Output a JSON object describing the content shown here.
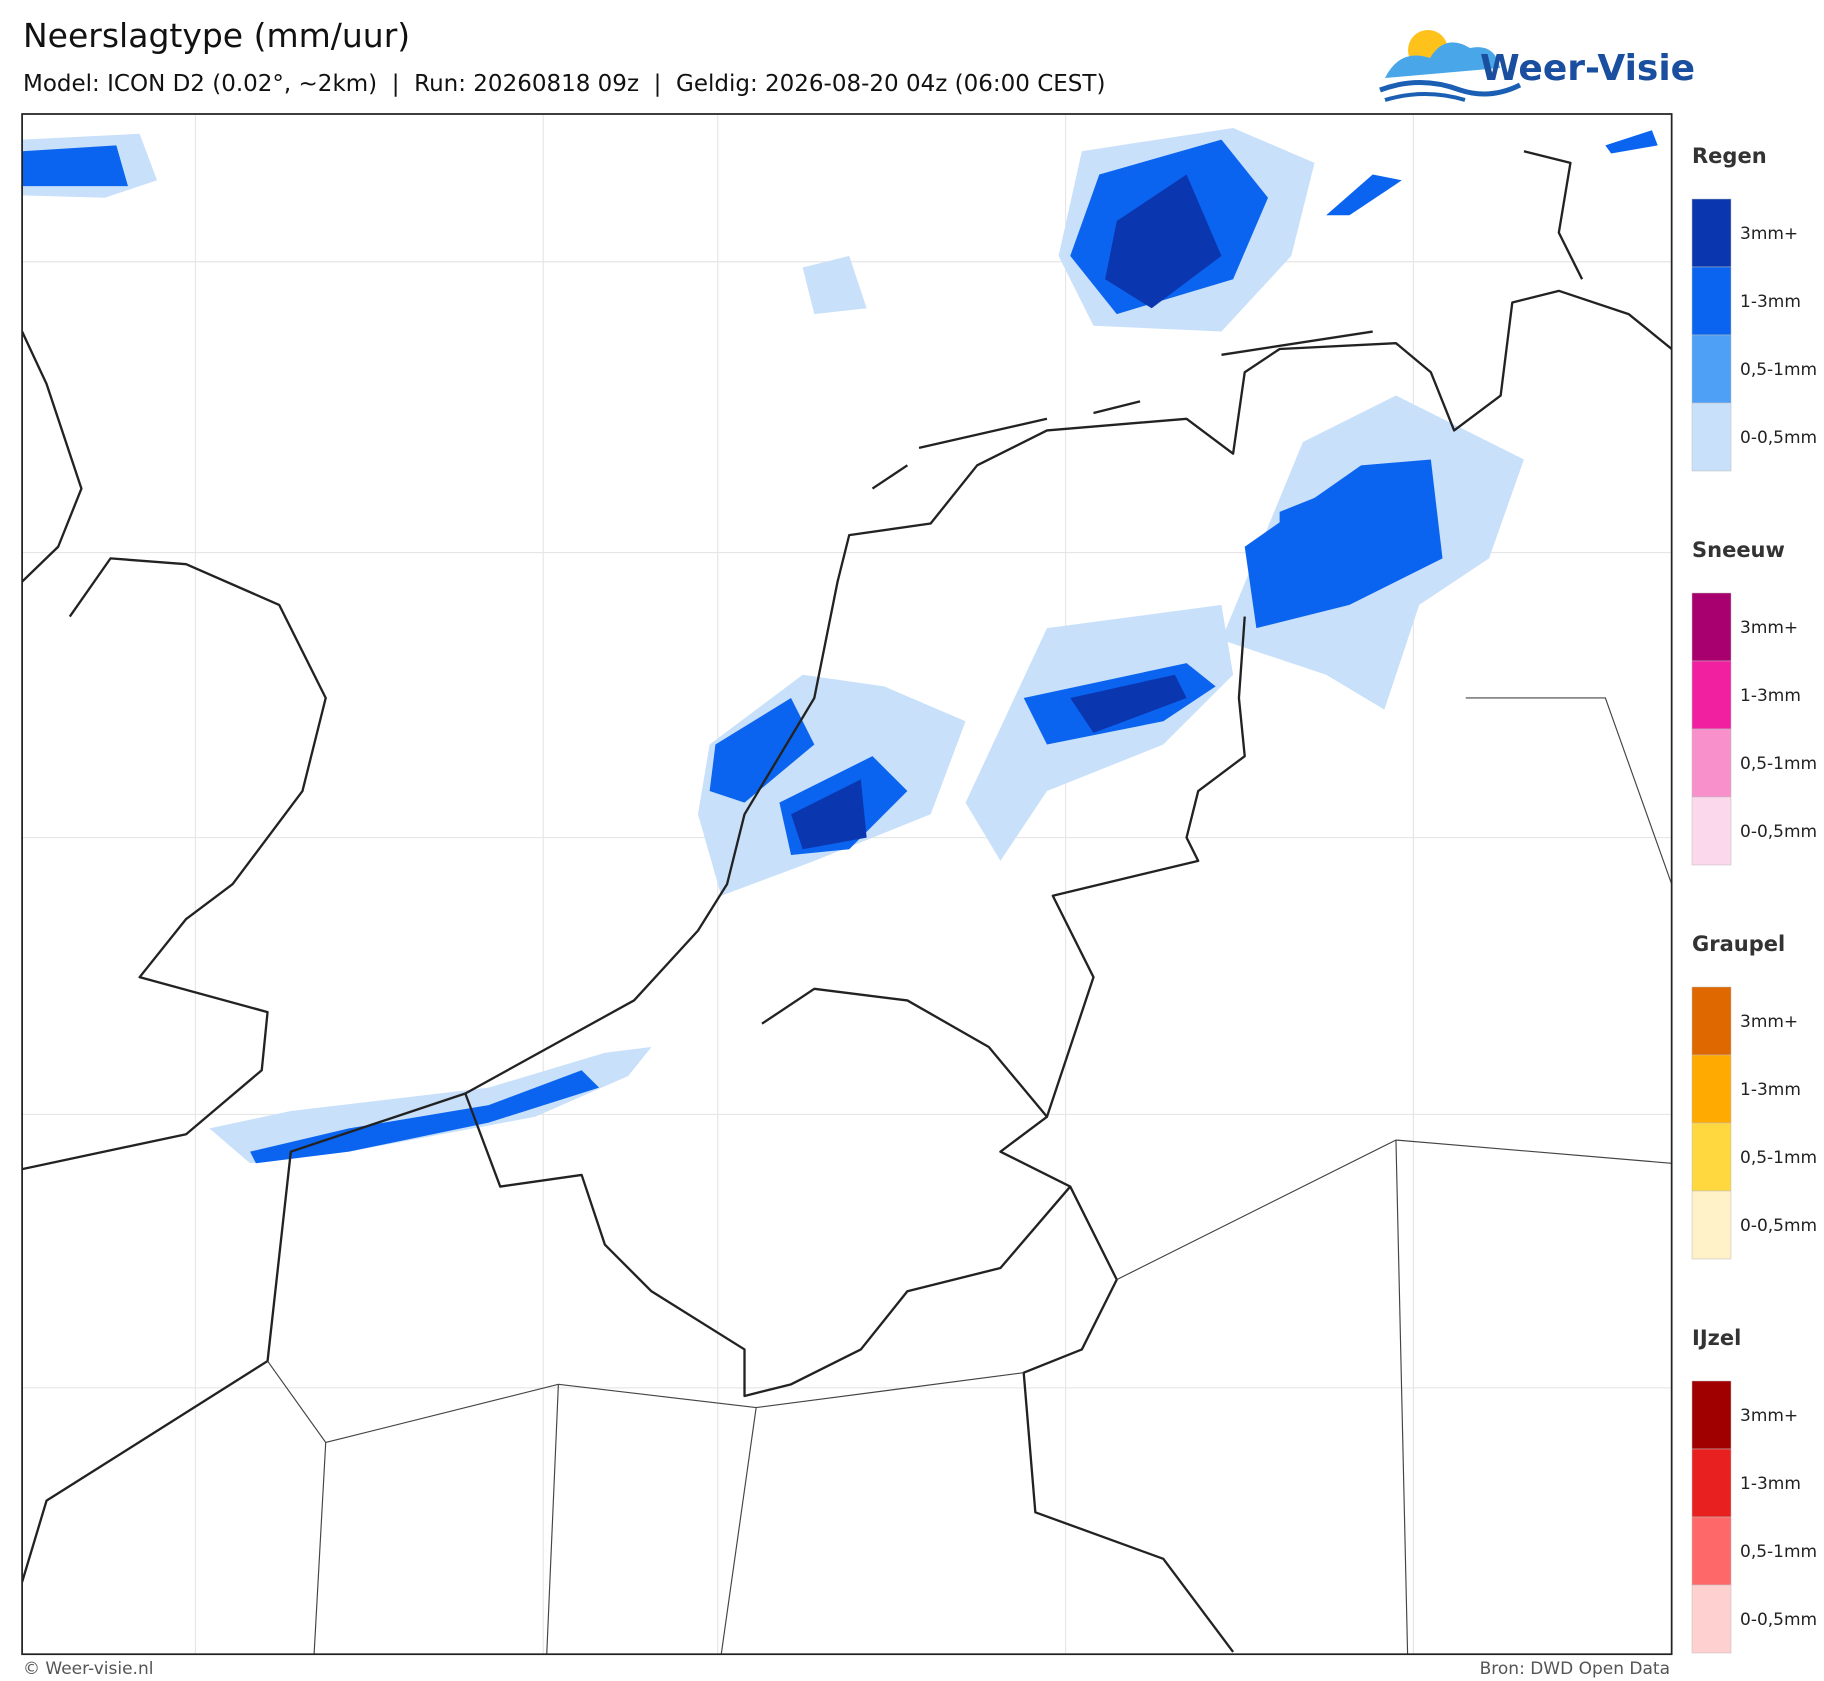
{
  "header": {
    "title": "Neerslagtype (mm/uur)",
    "subtitle": "Model: ICON D2 (0.02°, ~2km)  |  Run: 20260818 09z  |  Geldig: 2026-08-20 04z (06:00 CEST)",
    "logo": "Weer-Visie"
  },
  "legend": [
    {
      "name": "Regen",
      "items": [
        {
          "label": "3mm+",
          "color": "#0a36b0"
        },
        {
          "label": "1-3mm",
          "color": "#0a64f0"
        },
        {
          "label": "0,5-1mm",
          "color": "#4da0f5"
        },
        {
          "label": "0-0,5mm",
          "color": "#c8e0fa"
        }
      ]
    },
    {
      "name": "Sneeuw",
      "items": [
        {
          "label": "3mm+",
          "color": "#a8006e"
        },
        {
          "label": "1-3mm",
          "color": "#f020a0"
        },
        {
          "label": "0,5-1mm",
          "color": "#f890cc"
        },
        {
          "label": "0-0,5mm",
          "color": "#fcd8ec"
        }
      ]
    },
    {
      "name": "Graupel",
      "items": [
        {
          "label": "3mm+",
          "color": "#e06800"
        },
        {
          "label": "1-3mm",
          "color": "#ffaa00"
        },
        {
          "label": "0,5-1mm",
          "color": "#ffd840"
        },
        {
          "label": "0-0,5mm",
          "color": "#fff2c8"
        }
      ]
    },
    {
      "name": "IJzel",
      "items": [
        {
          "label": "3mm+",
          "color": "#a00000"
        },
        {
          "label": "1-3mm",
          "color": "#e82020"
        },
        {
          "label": "0,5-1mm",
          "color": "#ff6868"
        },
        {
          "label": "0-0,5mm",
          "color": "#ffd0d0"
        }
      ]
    }
  ],
  "footer": {
    "credit": "© Weer-visie.nl",
    "source": "Bron: DWD Open Data"
  }
}
